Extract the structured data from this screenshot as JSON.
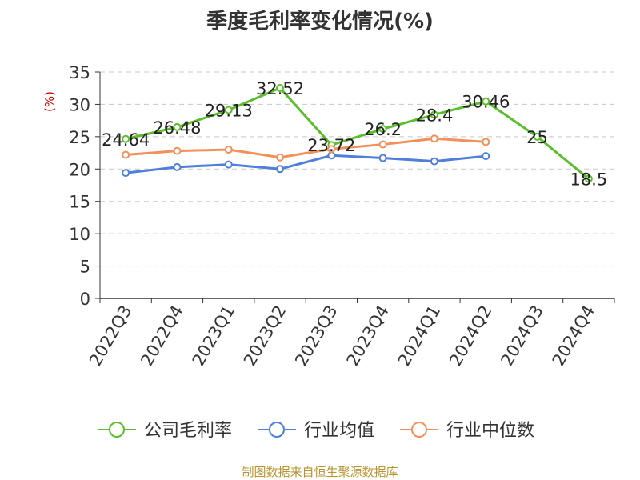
{
  "title": "季度毛利率变化情况(%)",
  "footer": "制图数据来自恒生聚源数据库",
  "chart_data": {
    "type": "line",
    "title": "季度毛利率变化情况(%)",
    "ylabel": "(%)",
    "xlabel": "",
    "categories": [
      "2022Q3",
      "2022Q4",
      "2023Q1",
      "2023Q2",
      "2023Q3",
      "2023Q4",
      "2024Q1",
      "2024Q2",
      "2024Q3",
      "2024Q4"
    ],
    "ylim": [
      0,
      35
    ],
    "yticks": [
      "0",
      "5",
      "10",
      "15",
      "20",
      "25",
      "30",
      "35"
    ],
    "grid": "horizontal dashed",
    "legend_position": "bottom",
    "series": [
      {
        "name": "公司毛利率",
        "color": "#5cbd2c",
        "labels": true,
        "values": [
          24.64,
          26.48,
          29.13,
          32.52,
          23.72,
          26.2,
          28.4,
          30.46,
          25,
          18.5
        ],
        "label_text": [
          "24.64",
          "26.48",
          "29.13",
          "32.52",
          "23.72",
          "26.2",
          "28.4",
          "30.46",
          "25",
          "18.5"
        ]
      },
      {
        "name": "行业均值",
        "color": "#4f7fd8",
        "labels": false,
        "values": [
          19.4,
          20.3,
          20.7,
          20.0,
          22.1,
          21.7,
          21.2,
          22.0,
          null,
          null
        ]
      },
      {
        "name": "行业中位数",
        "color": "#f2905b",
        "labels": false,
        "values": [
          22.2,
          22.8,
          23.0,
          21.8,
          23.1,
          23.8,
          24.7,
          24.2,
          null,
          null
        ]
      }
    ]
  }
}
